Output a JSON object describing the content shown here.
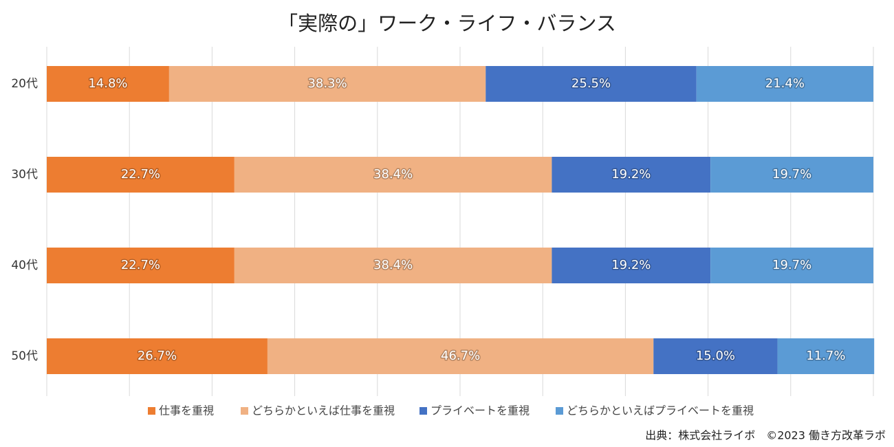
{
  "chart_data": {
    "type": "bar",
    "orientation": "horizontal",
    "stacked": true,
    "title": "「実際の」ワーク・ライフ・バランス",
    "categories": [
      "20代",
      "30代",
      "40代",
      "50代"
    ],
    "series": [
      {
        "name": "仕事を重視",
        "color": "#ed7d31",
        "values": [
          14.8,
          22.7,
          22.7,
          26.7
        ],
        "value_labels": [
          "14.8%",
          "22.7%",
          "22.7%",
          "26.7%"
        ]
      },
      {
        "name": "どちらかといえば仕事を重視",
        "color": "#f0b183",
        "values": [
          38.3,
          38.4,
          38.4,
          46.7
        ],
        "value_labels": [
          "38.3%",
          "38.4%",
          "38.4%",
          "46.7%"
        ]
      },
      {
        "name": "プライベートを重視",
        "color": "#4472c4",
        "values": [
          25.5,
          19.2,
          19.2,
          15.0
        ],
        "value_labels": [
          "25.5%",
          "19.2%",
          "19.2%",
          "15.0%"
        ]
      },
      {
        "name": "どちらかといえばプライベートを重視",
        "color": "#5b9bd5",
        "values": [
          21.4,
          19.7,
          19.7,
          11.7
        ],
        "value_labels": [
          "21.4%",
          "19.7%",
          "19.7%",
          "11.7%"
        ]
      }
    ],
    "xlim": [
      0,
      100
    ],
    "xticks": [
      0,
      10,
      20,
      30,
      40,
      50,
      60,
      70,
      80,
      90,
      100
    ],
    "grid": true,
    "source": "出典：株式会社ライボ　©2023 働き方改革ラボ"
  }
}
